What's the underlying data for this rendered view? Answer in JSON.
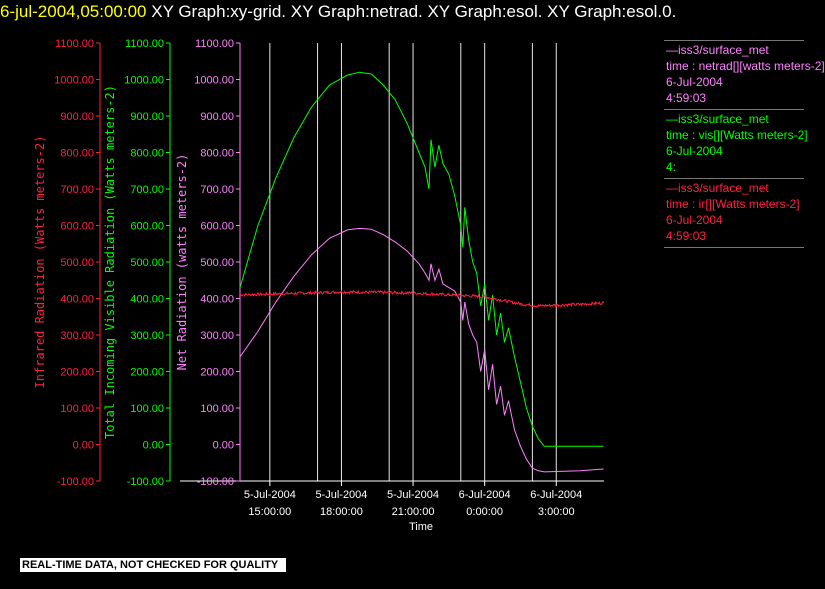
{
  "header": {
    "timestamp": "6-jul-2004,05:00:00",
    "graphs": " XY Graph:xy-grid.  XY Graph:netrad.  XY Graph:esol.  XY Graph:esol.0."
  },
  "footer": {
    "notice": "REAL-TIME DATA, NOT CHECKED FOR QUALITY"
  },
  "colors": {
    "ir": "#ff2040",
    "vis": "#00ff00",
    "net": "#ff80ff",
    "grid": "#ffffff",
    "text": "#ffffff"
  },
  "legend": [
    {
      "line1": "—iss3/surface_met",
      "line2": "time : netrad[][watts meters-2]",
      "line3": "6-Jul-2004",
      "line4": "4:59:03",
      "color": "#ff80ff"
    },
    {
      "line1": "—iss3/surface_met",
      "line2": "time : vis[][Watts meters-2]",
      "line3": "6-Jul-2004",
      "line4": "4:",
      "color": "#00ff00"
    },
    {
      "line1": "—iss3/surface_met",
      "line2": "time : ir[][Watts meters-2]",
      "line3": "6-Jul-2004",
      "line4": "4:59:03",
      "color": "#ff2040"
    }
  ],
  "chart_data": {
    "type": "line",
    "xlabel": "Time",
    "xlim": [
      "2004-07-05T13:45:00",
      "2004-07-06T05:00:00"
    ],
    "x_ticks": [
      {
        "t": "2004-07-05T15:00:00",
        "line1": "5-Jul-2004",
        "line2": "15:00:00"
      },
      {
        "t": "2004-07-05T18:00:00",
        "line1": "5-Jul-2004",
        "line2": "18:00:00"
      },
      {
        "t": "2004-07-05T21:00:00",
        "line1": "5-Jul-2004",
        "line2": "21:00:00"
      },
      {
        "t": "2004-07-06T00:00:00",
        "line1": "6-Jul-2004",
        "line2": "0:00:00"
      },
      {
        "t": "2004-07-06T03:00:00",
        "line1": "6-Jul-2004",
        "line2": "3:00:00"
      }
    ],
    "vgrid": [
      "2004-07-05T17:00:00",
      "2004-07-05T20:00:00",
      "2004-07-05T23:00:00",
      "2004-07-06T02:00:00"
    ],
    "ylim": [
      -100,
      1100
    ],
    "y_ticks": [
      "-100.00",
      "0.00",
      "100.00",
      "200.00",
      "300.00",
      "400.00",
      "500.00",
      "600.00",
      "700.00",
      "800.00",
      "900.00",
      "1000.00",
      "1100.00"
    ],
    "axes": [
      {
        "label": "Infrared Radiation (Watts meters-2)",
        "color": "#ff2040"
      },
      {
        "label": "Total Incoming Visible Radiation (Watts meters-2)",
        "color": "#00ff00"
      },
      {
        "label": "Net Radiation (watts meters-2)",
        "color": "#ff80ff"
      }
    ],
    "series": [
      {
        "key": "vis",
        "color": "#00ff00",
        "noise": 0,
        "points": [
          [
            "2004-07-05T13:45",
            430
          ],
          [
            "2004-07-05T14:30",
            600
          ],
          [
            "2004-07-05T15:15",
            730
          ],
          [
            "2004-07-05T16:00",
            840
          ],
          [
            "2004-07-05T16:45",
            925
          ],
          [
            "2004-07-05T17:30",
            985
          ],
          [
            "2004-07-05T18:15",
            1012
          ],
          [
            "2004-07-05T18:45",
            1020
          ],
          [
            "2004-07-05T19:15",
            1015
          ],
          [
            "2004-07-05T19:45",
            985
          ],
          [
            "2004-07-05T20:15",
            945
          ],
          [
            "2004-07-05T20:45",
            880
          ],
          [
            "2004-07-05T21:15",
            800
          ],
          [
            "2004-07-05T21:30",
            760
          ],
          [
            "2004-07-05T21:40",
            700
          ],
          [
            "2004-07-05T21:45",
            835
          ],
          [
            "2004-07-05T21:55",
            760
          ],
          [
            "2004-07-05T22:05",
            820
          ],
          [
            "2004-07-05T22:15",
            770
          ],
          [
            "2004-07-05T22:30",
            740
          ],
          [
            "2004-07-05T22:45",
            680
          ],
          [
            "2004-07-05T23:00",
            600
          ],
          [
            "2004-07-05T23:05",
            540
          ],
          [
            "2004-07-05T23:10",
            650
          ],
          [
            "2004-07-05T23:20",
            560
          ],
          [
            "2004-07-05T23:30",
            500
          ],
          [
            "2004-07-05T23:40",
            470
          ],
          [
            "2004-07-05T23:50",
            380
          ],
          [
            "2004-07-06T00:00",
            440
          ],
          [
            "2004-07-06T00:10",
            340
          ],
          [
            "2004-07-06T00:20",
            410
          ],
          [
            "2004-07-06T00:30",
            300
          ],
          [
            "2004-07-06T00:40",
            360
          ],
          [
            "2004-07-06T00:50",
            280
          ],
          [
            "2004-07-06T01:00",
            320
          ],
          [
            "2004-07-06T01:15",
            240
          ],
          [
            "2004-07-06T01:30",
            170
          ],
          [
            "2004-07-06T01:45",
            100
          ],
          [
            "2004-07-06T02:00",
            50
          ],
          [
            "2004-07-06T02:15",
            15
          ],
          [
            "2004-07-06T02:30",
            -5
          ],
          [
            "2004-07-06T03:00",
            -5
          ],
          [
            "2004-07-06T04:00",
            -5
          ],
          [
            "2004-07-06T04:59",
            -5
          ]
        ]
      },
      {
        "key": "net",
        "color": "#ff80ff",
        "noise": 0,
        "points": [
          [
            "2004-07-05T13:45",
            240
          ],
          [
            "2004-07-05T14:30",
            310
          ],
          [
            "2004-07-05T15:15",
            390
          ],
          [
            "2004-07-05T16:00",
            460
          ],
          [
            "2004-07-05T16:45",
            520
          ],
          [
            "2004-07-05T17:30",
            565
          ],
          [
            "2004-07-05T18:15",
            588
          ],
          [
            "2004-07-05T18:45",
            592
          ],
          [
            "2004-07-05T19:15",
            590
          ],
          [
            "2004-07-05T19:45",
            575
          ],
          [
            "2004-07-05T20:15",
            555
          ],
          [
            "2004-07-05T20:45",
            530
          ],
          [
            "2004-07-05T21:15",
            495
          ],
          [
            "2004-07-05T21:30",
            470
          ],
          [
            "2004-07-05T21:40",
            450
          ],
          [
            "2004-07-05T21:45",
            495
          ],
          [
            "2004-07-05T21:55",
            450
          ],
          [
            "2004-07-05T22:05",
            480
          ],
          [
            "2004-07-05T22:15",
            440
          ],
          [
            "2004-07-05T22:30",
            430
          ],
          [
            "2004-07-05T22:45",
            420
          ],
          [
            "2004-07-05T23:00",
            390
          ],
          [
            "2004-07-05T23:05",
            340
          ],
          [
            "2004-07-05T23:10",
            390
          ],
          [
            "2004-07-05T23:20",
            330
          ],
          [
            "2004-07-05T23:30",
            300
          ],
          [
            "2004-07-05T23:40",
            280
          ],
          [
            "2004-07-05T23:50",
            200
          ],
          [
            "2004-07-06T00:00",
            260
          ],
          [
            "2004-07-06T00:10",
            150
          ],
          [
            "2004-07-06T00:20",
            220
          ],
          [
            "2004-07-06T00:30",
            110
          ],
          [
            "2004-07-06T00:40",
            160
          ],
          [
            "2004-07-06T00:50",
            80
          ],
          [
            "2004-07-06T01:00",
            120
          ],
          [
            "2004-07-06T01:15",
            40
          ],
          [
            "2004-07-06T01:30",
            -5
          ],
          [
            "2004-07-06T01:45",
            -40
          ],
          [
            "2004-07-06T02:00",
            -65
          ],
          [
            "2004-07-06T02:15",
            -72
          ],
          [
            "2004-07-06T02:30",
            -75
          ],
          [
            "2004-07-06T03:00",
            -74
          ],
          [
            "2004-07-06T04:00",
            -72
          ],
          [
            "2004-07-06T04:59",
            -67
          ]
        ]
      },
      {
        "key": "ir",
        "color": "#ff2040",
        "noise": 4,
        "points": [
          [
            "2004-07-05T13:45",
            410
          ],
          [
            "2004-07-05T15:00",
            412
          ],
          [
            "2004-07-05T16:30",
            415
          ],
          [
            "2004-07-05T18:00",
            418
          ],
          [
            "2004-07-05T19:30",
            417
          ],
          [
            "2004-07-05T21:00",
            415
          ],
          [
            "2004-07-05T22:30",
            410
          ],
          [
            "2004-07-06T00:00",
            405
          ],
          [
            "2004-07-06T00:45",
            395
          ],
          [
            "2004-07-06T01:30",
            385
          ],
          [
            "2004-07-06T02:15",
            380
          ],
          [
            "2004-07-06T03:00",
            382
          ],
          [
            "2004-07-06T04:00",
            384
          ],
          [
            "2004-07-06T04:59",
            388
          ]
        ]
      }
    ]
  }
}
